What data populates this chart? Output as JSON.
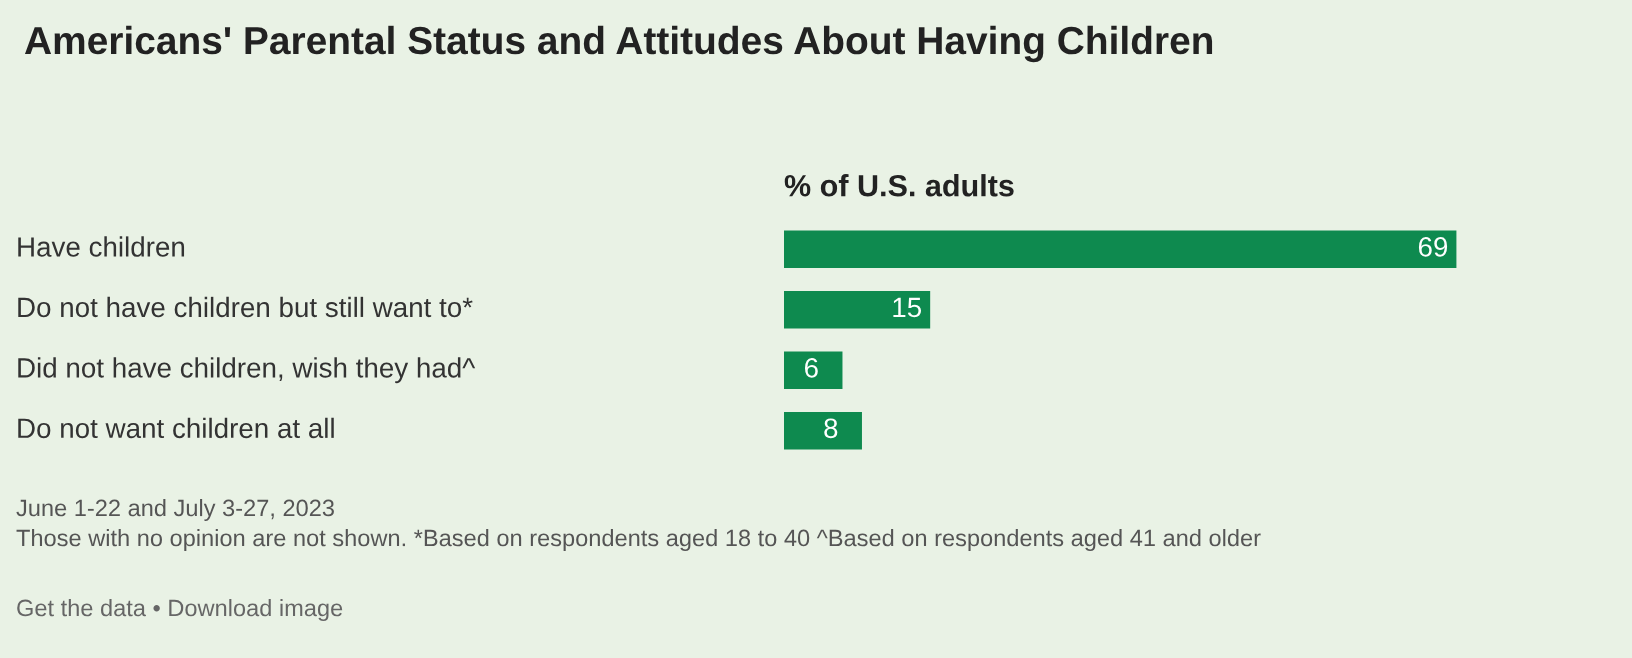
{
  "chart_data": {
    "type": "bar",
    "orientation": "horizontal",
    "title": "Americans' Parental Status and Attitudes About Having Children",
    "xlabel": "% of U.S. adults",
    "categories": [
      "Have children",
      "Do not have children but still want to*",
      "Did not have children, wish they had^",
      "Do not want children at all"
    ],
    "values": [
      69,
      15,
      6,
      8
    ],
    "color": "#0e8a4f",
    "data_labels": true,
    "annotations": [
      "June 1-22 and July 3-27, 2023",
      "Those with no opinion are not shown. *Based on respondents aged 18 to 40 ^Based on respondents aged 41 and older",
      "Get the data • Download image"
    ]
  }
}
